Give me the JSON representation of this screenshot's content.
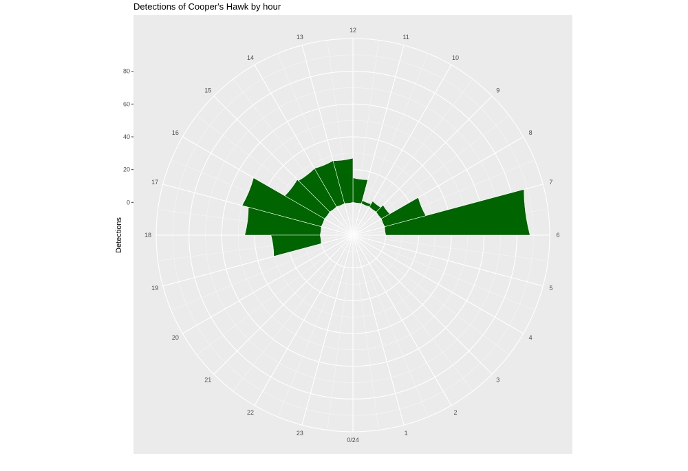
{
  "chart_data": {
    "type": "bar",
    "coordinate_system": "polar",
    "title": "Detections of Cooper's Hawk by hour",
    "xlabel": "",
    "ylabel": "Detections",
    "x_tick_labels": [
      "0/24",
      "1",
      "2",
      "3",
      "4",
      "5",
      "6",
      "7",
      "8",
      "9",
      "10",
      "11",
      "12",
      "13",
      "14",
      "15",
      "16",
      "17",
      "18",
      "19",
      "20",
      "21",
      "22",
      "23"
    ],
    "y_ticks": [
      0,
      20,
      40,
      60,
      80
    ],
    "ylim": [
      -20,
      100
    ],
    "categories": [
      6.5,
      7.5,
      8.5,
      9.5,
      10.5,
      11.5,
      12.5,
      13.5,
      14.5,
      15.5,
      16.5,
      17.5,
      18.5
    ],
    "series": [
      {
        "values": [
          88,
          26,
          6,
          4,
          2,
          15,
          27,
          27,
          27,
          28,
          50,
          46,
          30
        ],
        "color": "#006400"
      }
    ],
    "grid": true,
    "background": "#ebebeb",
    "legend": "none"
  }
}
